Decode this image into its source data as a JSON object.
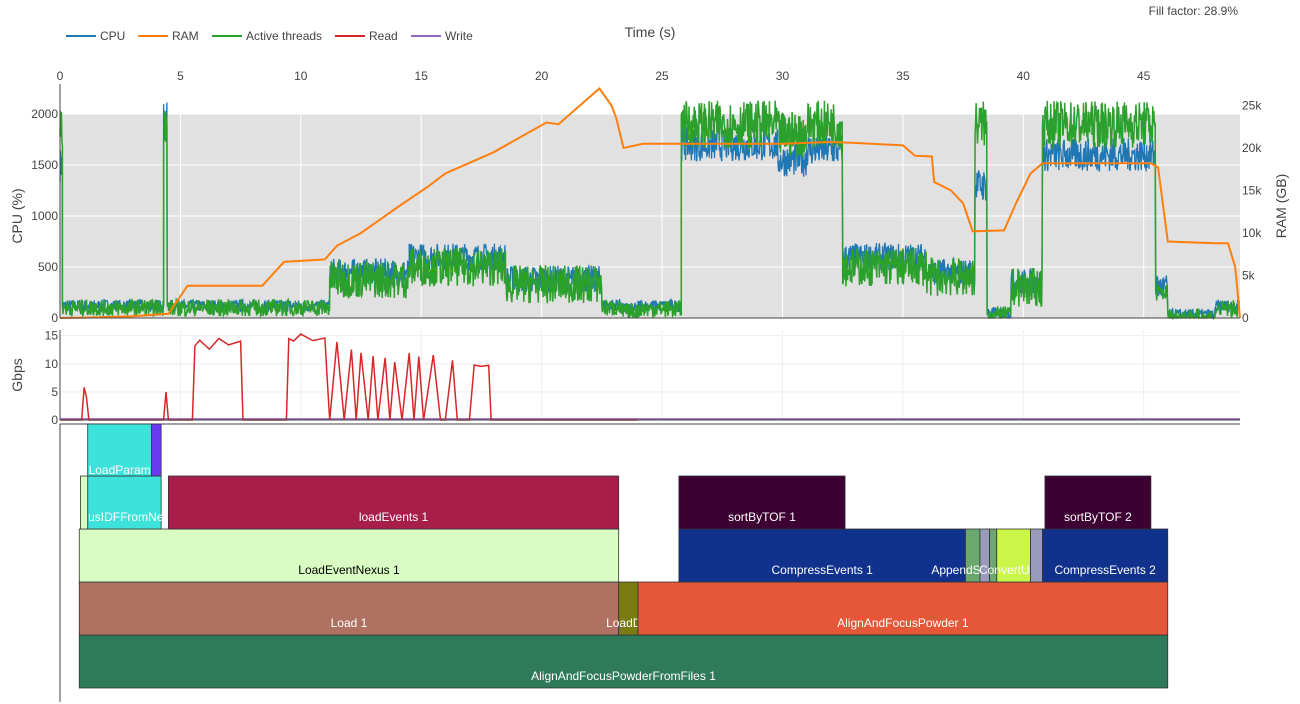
{
  "fill_factor": "Fill factor: 28.9%",
  "colors": {
    "cpu": "#1f77b4",
    "ram": "#ff7f0e",
    "threads": "#2ca02c",
    "read": "#d62728",
    "write": "#9467bd",
    "plot_bg": "#e1e1e1",
    "grid": "#eeeeee"
  },
  "chart_data": {
    "type": "line",
    "title": "Time (s)",
    "xlabel": "Time (s)",
    "xlim": [
      0,
      49
    ],
    "x_ticks": [
      0,
      5,
      10,
      15,
      20,
      25,
      30,
      35,
      40,
      45
    ],
    "legend": [
      "CPU",
      "RAM",
      "Active threads",
      "Read",
      "Write"
    ],
    "cpu_panel": {
      "ylabel": "CPU (%)",
      "ylim": [
        0,
        2000
      ],
      "y_ticks": [
        0,
        500,
        1000,
        1500,
        2000
      ],
      "y2label": "RAM (GB)",
      "y2lim": [
        0,
        24000
      ],
      "y2_ticks": [
        0,
        5000,
        10000,
        15000,
        20000,
        25000
      ],
      "y2_tick_labels": [
        "0",
        "5k",
        "10k",
        "15k",
        "20k",
        "25k"
      ],
      "cpu_segments": [
        [
          0,
          0.1,
          1500
        ],
        [
          0.1,
          4.3,
          120
        ],
        [
          4.3,
          4.45,
          1950
        ],
        [
          4.45,
          11.2,
          120
        ],
        [
          11.2,
          14.5,
          450
        ],
        [
          14.5,
          18.5,
          600
        ],
        [
          18.5,
          22.5,
          380
        ],
        [
          22.5,
          23.3,
          130
        ],
        [
          23.3,
          24.0,
          90
        ],
        [
          24.0,
          25.8,
          120
        ],
        [
          25.8,
          29.8,
          1700
        ],
        [
          29.8,
          31.0,
          1550
        ],
        [
          31.0,
          32.5,
          1650
        ],
        [
          32.5,
          36.0,
          600
        ],
        [
          36.0,
          38.0,
          450
        ],
        [
          38.0,
          38.5,
          1300
        ],
        [
          38.5,
          39.5,
          50
        ],
        [
          39.5,
          40.8,
          350
        ],
        [
          40.8,
          45.5,
          1600
        ],
        [
          45.5,
          46.0,
          300
        ],
        [
          46.0,
          48.0,
          30
        ],
        [
          48.0,
          49.0,
          120
        ]
      ],
      "thread_segments": [
        [
          0,
          0.1,
          1900
        ],
        [
          0.1,
          4.3,
          100
        ],
        [
          4.3,
          4.45,
          1950
        ],
        [
          4.45,
          11.2,
          100
        ],
        [
          11.2,
          14.5,
          380
        ],
        [
          14.5,
          18.5,
          500
        ],
        [
          18.5,
          22.5,
          330
        ],
        [
          22.5,
          23.3,
          100
        ],
        [
          23.3,
          24.0,
          60
        ],
        [
          24.0,
          25.8,
          90
        ],
        [
          25.8,
          29.8,
          1900
        ],
        [
          29.8,
          31.0,
          1800
        ],
        [
          31.0,
          32.5,
          1900
        ],
        [
          32.5,
          36.0,
          500
        ],
        [
          36.0,
          38.0,
          400
        ],
        [
          38.0,
          38.5,
          1900
        ],
        [
          38.5,
          39.5,
          30
        ],
        [
          39.5,
          40.8,
          300
        ],
        [
          40.8,
          45.5,
          1900
        ],
        [
          45.5,
          46.0,
          250
        ],
        [
          46.0,
          48.0,
          10
        ],
        [
          48.0,
          49.0,
          90
        ]
      ],
      "ram": {
        "x": [
          0,
          1,
          3,
          4.5,
          5.3,
          8.4,
          9.3,
          11,
          11.5,
          12.5,
          14,
          15.3,
          16,
          18,
          20.2,
          20.7,
          22.4,
          22.9,
          23.1,
          23.4,
          24.2,
          26,
          28,
          30,
          32,
          33,
          35,
          35.5,
          36.2,
          36.3,
          37,
          37.5,
          37.9,
          39.2,
          39.7,
          40.3,
          40.8,
          41.2,
          44,
          45.3,
          45.6,
          46,
          48,
          48.5,
          48.8,
          49
        ],
        "y": [
          0,
          50,
          200,
          500,
          3800,
          3800,
          6600,
          6900,
          8500,
          10000,
          13000,
          15500,
          17000,
          19500,
          23000,
          22800,
          27000,
          25000,
          23500,
          20000,
          20500,
          20500,
          20500,
          20500,
          20700,
          20600,
          20300,
          19100,
          19000,
          16000,
          15000,
          13500,
          10200,
          10300,
          13500,
          17000,
          18200,
          18200,
          18200,
          18200,
          17700,
          9000,
          8800,
          8800,
          6000,
          0
        ]
      }
    },
    "io_panel": {
      "ylabel": "Gbps",
      "ylim": [
        0,
        16
      ],
      "y_ticks": [
        0,
        5,
        10,
        15
      ],
      "read": {
        "x": [
          0,
          0.9,
          1.0,
          1.1,
          1.2,
          4.3,
          4.4,
          4.5,
          5.5,
          5.6,
          5.8,
          6.2,
          6.6,
          7.0,
          7.5,
          7.6,
          9.4,
          9.5,
          9.7,
          10.0,
          10.5,
          11.0,
          11.1,
          11.2,
          11.5,
          11.8,
          12.1,
          12.3,
          12.5,
          12.8,
          13.0,
          13.2,
          13.5,
          13.7,
          13.9,
          14.2,
          14.5,
          14.7,
          14.9,
          15.1,
          15.5,
          15.8,
          16.0,
          16.3,
          16.5,
          17.0,
          17.2,
          17.5,
          17.8,
          17.9,
          24.0
        ],
        "y": [
          0,
          0,
          5.8,
          4,
          0,
          0,
          5,
          0,
          0,
          13,
          13.8,
          12.9,
          14.8,
          13.2,
          14,
          0,
          0,
          14.6,
          13.8,
          15,
          14.2,
          14.8,
          7,
          0,
          13.5,
          0,
          12.5,
          0,
          12,
          0,
          11.5,
          0,
          11,
          0,
          10.5,
          0,
          11.5,
          0,
          11,
          0,
          11.5,
          0,
          0,
          10.5,
          0,
          0,
          10,
          9.2,
          9.8,
          0,
          0
        ]
      },
      "write": {
        "x": [
          0,
          49
        ],
        "y": [
          0.15,
          0.15
        ]
      }
    },
    "flame_graph": {
      "levels_from_bottom": [
        "AlignAndFocusPowderFromFiles 1",
        "Load 1 / LoadDiff / AlignAndFocusPowder 1",
        "LoadEventNexus 1 / CompressEvents 1 / AppendSpectra / ConvertUnits / CompressEvents 2",
        "NexusIDFFromNexus / loadEvents 1 / sortByTOF 1 / sortByTOF 2",
        "LoadParam"
      ],
      "blocks": [
        {
          "label": "AlignAndFocusPowderFromFiles 1",
          "start": 0.8,
          "end": 46.0,
          "depth": 0,
          "color": "#2e7a5b",
          "text_color": "#ffffff"
        },
        {
          "label": "Load 1",
          "start": 0.8,
          "end": 23.2,
          "depth": 1,
          "color": "#af7262",
          "text_color": "#ffffff"
        },
        {
          "label": "LoadDiff",
          "start": 23.2,
          "end": 24.0,
          "depth": 1,
          "color": "#7a7b10",
          "text_color": "#ffffff"
        },
        {
          "label": "AlignAndFocusPowder 1",
          "start": 24.0,
          "end": 46.0,
          "depth": 1,
          "color": "#e45839",
          "text_color": "#ffffff"
        },
        {
          "label": "LoadEventNexus 1",
          "start": 0.8,
          "end": 23.2,
          "depth": 2,
          "color": "#d8fcc1",
          "text_color": "#000000"
        },
        {
          "label": "CompressEvents 1",
          "start": 25.7,
          "end": 37.6,
          "depth": 2,
          "color": "#10318c",
          "text_color": "#ffffff"
        },
        {
          "label": "AppendSpectra",
          "start": 37.6,
          "end": 38.2,
          "depth": 2,
          "color": "#6aa86e",
          "text_color": "#ffffff"
        },
        {
          "label": "",
          "start": 38.2,
          "end": 38.6,
          "depth": 2,
          "color": "#9a9aba",
          "text_color": "#ffffff"
        },
        {
          "label": "",
          "start": 38.6,
          "end": 38.9,
          "depth": 2,
          "color": "#6aa86e",
          "text_color": "#ffffff"
        },
        {
          "label": "ConvertUnits",
          "start": 38.9,
          "end": 40.3,
          "depth": 2,
          "color": "#caf549",
          "text_color": "#ffffff"
        },
        {
          "label": "",
          "start": 40.3,
          "end": 40.8,
          "depth": 2,
          "color": "#9a9aba",
          "text_color": "#ffffff"
        },
        {
          "label": "CompressEvents 2",
          "start": 40.8,
          "end": 46.0,
          "depth": 2,
          "color": "#10318c",
          "text_color": "#ffffff"
        },
        {
          "label": "NexusIDFFromNexus",
          "start": 1.15,
          "end": 4.2,
          "depth": 3,
          "color": "#3de3da",
          "text_color": "#ffffff"
        },
        {
          "label": "",
          "start": 0.85,
          "end": 1.15,
          "depth": 3,
          "color": "#d8fcc1",
          "text_color": "#000000"
        },
        {
          "label": "loadEvents 1",
          "start": 4.5,
          "end": 23.2,
          "depth": 3,
          "color": "#a81e4a",
          "text_color": "#ffffff"
        },
        {
          "label": "sortByTOF 1",
          "start": 25.7,
          "end": 32.6,
          "depth": 3,
          "color": "#3d0033",
          "text_color": "#ffffff"
        },
        {
          "label": "sortByTOF 2",
          "start": 40.9,
          "end": 45.3,
          "depth": 3,
          "color": "#3d0033",
          "text_color": "#ffffff"
        },
        {
          "label": "LoadParam",
          "start": 1.15,
          "end": 3.8,
          "depth": 4,
          "color": "#3de3da",
          "text_color": "#ffffff"
        },
        {
          "label": "",
          "start": 3.8,
          "end": 4.2,
          "depth": 4,
          "color": "#6a3af0",
          "text_color": "#ffffff"
        }
      ]
    }
  }
}
